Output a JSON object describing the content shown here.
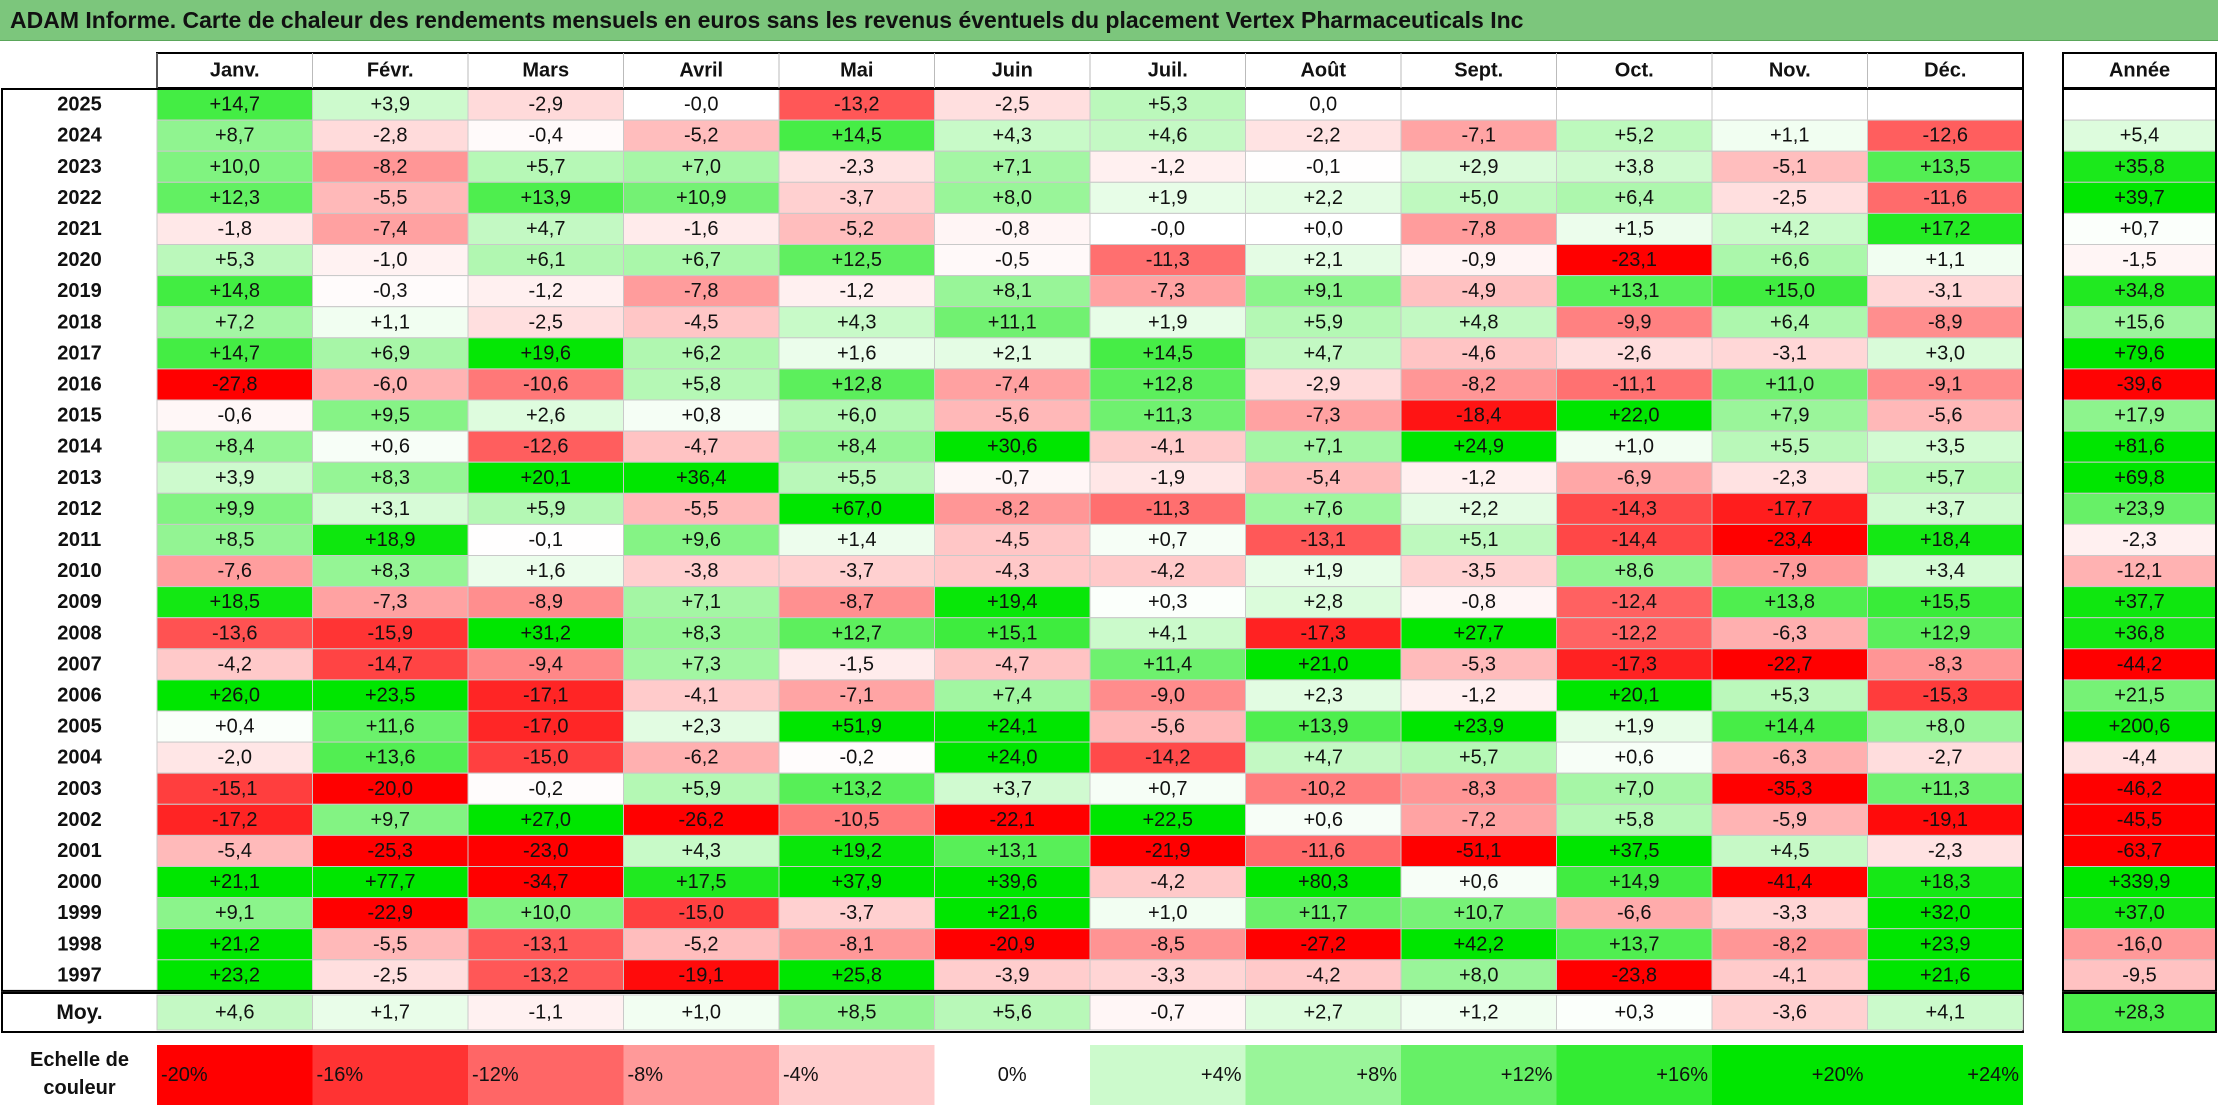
{
  "title": "ADAM Informe. Carte de chaleur des rendements mensuels en euros sans les revenus éventuels du placement Vertex Pharmaceuticals Inc",
  "chart_data": {
    "type": "heatmap",
    "months": [
      "Janv.",
      "Févr.",
      "Mars",
      "Avril",
      "Mai",
      "Juin",
      "Juil.",
      "Août",
      "Sept.",
      "Oct.",
      "Nov.",
      "Déc."
    ],
    "year_header": "Année",
    "rows": [
      {
        "year": "2025",
        "values": [
          "+14,7",
          "+3,9",
          "-2,9",
          "-0,0",
          "-13,2",
          "-2,5",
          "+5,3",
          "0,0",
          "",
          "",
          "",
          ""
        ],
        "annual": ""
      },
      {
        "year": "2024",
        "values": [
          "+8,7",
          "-2,8",
          "-0,4",
          "-5,2",
          "+14,5",
          "+4,3",
          "+4,6",
          "-2,2",
          "-7,1",
          "+5,2",
          "+1,1",
          "-12,6"
        ],
        "annual": "+5,4"
      },
      {
        "year": "2023",
        "values": [
          "+10,0",
          "-8,2",
          "+5,7",
          "+7,0",
          "-2,3",
          "+7,1",
          "-1,2",
          "-0,1",
          "+2,9",
          "+3,8",
          "-5,1",
          "+13,5"
        ],
        "annual": "+35,8"
      },
      {
        "year": "2022",
        "values": [
          "+12,3",
          "-5,5",
          "+13,9",
          "+10,9",
          "-3,7",
          "+8,0",
          "+1,9",
          "+2,2",
          "+5,0",
          "+6,4",
          "-2,5",
          "-11,6"
        ],
        "annual": "+39,7"
      },
      {
        "year": "2021",
        "values": [
          "-1,8",
          "-7,4",
          "+4,7",
          "-1,6",
          "-5,2",
          "-0,8",
          "-0,0",
          "+0,0",
          "-7,8",
          "+1,5",
          "+4,2",
          "+17,2"
        ],
        "annual": "+0,7"
      },
      {
        "year": "2020",
        "values": [
          "+5,3",
          "-1,0",
          "+6,1",
          "+6,7",
          "+12,5",
          "-0,5",
          "-11,3",
          "+2,1",
          "-0,9",
          "-23,1",
          "+6,6",
          "+1,1"
        ],
        "annual": "-1,5"
      },
      {
        "year": "2019",
        "values": [
          "+14,8",
          "-0,3",
          "-1,2",
          "-7,8",
          "-1,2",
          "+8,1",
          "-7,3",
          "+9,1",
          "-4,9",
          "+13,1",
          "+15,0",
          "-3,1"
        ],
        "annual": "+34,8"
      },
      {
        "year": "2018",
        "values": [
          "+7,2",
          "+1,1",
          "-2,5",
          "-4,5",
          "+4,3",
          "+11,1",
          "+1,9",
          "+5,9",
          "+4,8",
          "-9,9",
          "+6,4",
          "-8,9"
        ],
        "annual": "+15,6"
      },
      {
        "year": "2017",
        "values": [
          "+14,7",
          "+6,9",
          "+19,6",
          "+6,2",
          "+1,6",
          "+2,1",
          "+14,5",
          "+4,7",
          "-4,6",
          "-2,6",
          "-3,1",
          "+3,0"
        ],
        "annual": "+79,6"
      },
      {
        "year": "2016",
        "values": [
          "-27,8",
          "-6,0",
          "-10,6",
          "+5,8",
          "+12,8",
          "-7,4",
          "+12,8",
          "-2,9",
          "-8,2",
          "-11,1",
          "+11,0",
          "-9,1"
        ],
        "annual": "-39,6"
      },
      {
        "year": "2015",
        "values": [
          "-0,6",
          "+9,5",
          "+2,6",
          "+0,8",
          "+6,0",
          "-5,6",
          "+11,3",
          "-7,3",
          "-18,4",
          "+22,0",
          "+7,9",
          "-5,6"
        ],
        "annual": "+17,9"
      },
      {
        "year": "2014",
        "values": [
          "+8,4",
          "+0,6",
          "-12,6",
          "-4,7",
          "+8,4",
          "+30,6",
          "-4,1",
          "+7,1",
          "+24,9",
          "+1,0",
          "+5,5",
          "+3,5"
        ],
        "annual": "+81,6"
      },
      {
        "year": "2013",
        "values": [
          "+3,9",
          "+8,3",
          "+20,1",
          "+36,4",
          "+5,5",
          "-0,7",
          "-1,9",
          "-5,4",
          "-1,2",
          "-6,9",
          "-2,3",
          "+5,7"
        ],
        "annual": "+69,8"
      },
      {
        "year": "2012",
        "values": [
          "+9,9",
          "+3,1",
          "+5,9",
          "-5,5",
          "+67,0",
          "-8,2",
          "-11,3",
          "+7,6",
          "+2,2",
          "-14,3",
          "-17,7",
          "+3,7"
        ],
        "annual": "+23,9"
      },
      {
        "year": "2011",
        "values": [
          "+8,5",
          "+18,9",
          "-0,1",
          "+9,6",
          "+1,4",
          "-4,5",
          "+0,7",
          "-13,1",
          "+5,1",
          "-14,4",
          "-23,4",
          "+18,4"
        ],
        "annual": "-2,3"
      },
      {
        "year": "2010",
        "values": [
          "-7,6",
          "+8,3",
          "+1,6",
          "-3,8",
          "-3,7",
          "-4,3",
          "-4,2",
          "+1,9",
          "-3,5",
          "+8,6",
          "-7,9",
          "+3,4"
        ],
        "annual": "-12,1"
      },
      {
        "year": "2009",
        "values": [
          "+18,5",
          "-7,3",
          "-8,9",
          "+7,1",
          "-8,7",
          "+19,4",
          "+0,3",
          "+2,8",
          "-0,8",
          "-12,4",
          "+13,8",
          "+15,5"
        ],
        "annual": "+37,7"
      },
      {
        "year": "2008",
        "values": [
          "-13,6",
          "-15,9",
          "+31,2",
          "+8,3",
          "+12,7",
          "+15,1",
          "+4,1",
          "-17,3",
          "+27,7",
          "-12,2",
          "-6,3",
          "+12,9"
        ],
        "annual": "+36,8"
      },
      {
        "year": "2007",
        "values": [
          "-4,2",
          "-14,7",
          "-9,4",
          "+7,3",
          "-1,5",
          "-4,7",
          "+11,4",
          "+21,0",
          "-5,3",
          "-17,3",
          "-22,7",
          "-8,3"
        ],
        "annual": "-44,2"
      },
      {
        "year": "2006",
        "values": [
          "+26,0",
          "+23,5",
          "-17,1",
          "-4,1",
          "-7,1",
          "+7,4",
          "-9,0",
          "+2,3",
          "-1,2",
          "+20,1",
          "+5,3",
          "-15,3"
        ],
        "annual": "+21,5"
      },
      {
        "year": "2005",
        "values": [
          "+0,4",
          "+11,6",
          "-17,0",
          "+2,3",
          "+51,9",
          "+24,1",
          "-5,6",
          "+13,9",
          "+23,9",
          "+1,9",
          "+14,4",
          "+8,0"
        ],
        "annual": "+200,6"
      },
      {
        "year": "2004",
        "values": [
          "-2,0",
          "+13,6",
          "-15,0",
          "-6,2",
          "-0,2",
          "+24,0",
          "-14,2",
          "+4,7",
          "+5,7",
          "+0,6",
          "-6,3",
          "-2,7"
        ],
        "annual": "-4,4"
      },
      {
        "year": "2003",
        "values": [
          "-15,1",
          "-20,0",
          "-0,2",
          "+5,9",
          "+13,2",
          "+3,7",
          "+0,7",
          "-10,2",
          "-8,3",
          "+7,0",
          "-35,3",
          "+11,3"
        ],
        "annual": "-46,2"
      },
      {
        "year": "2002",
        "values": [
          "-17,2",
          "+9,7",
          "+27,0",
          "-26,2",
          "-10,5",
          "-22,1",
          "+22,5",
          "+0,6",
          "-7,2",
          "+5,8",
          "-5,9",
          "-19,1"
        ],
        "annual": "-45,5"
      },
      {
        "year": "2001",
        "values": [
          "-5,4",
          "-25,3",
          "-23,0",
          "+4,3",
          "+19,2",
          "+13,1",
          "-21,9",
          "-11,6",
          "-51,1",
          "+37,5",
          "+4,5",
          "-2,3"
        ],
        "annual": "-63,7"
      },
      {
        "year": "2000",
        "values": [
          "+21,1",
          "+77,7",
          "-34,7",
          "+17,5",
          "+37,9",
          "+39,6",
          "-4,2",
          "+80,3",
          "+0,6",
          "+14,9",
          "-41,4",
          "+18,3"
        ],
        "annual": "+339,9"
      },
      {
        "year": "1999",
        "values": [
          "+9,1",
          "-22,9",
          "+10,0",
          "-15,0",
          "-3,7",
          "+21,6",
          "+1,0",
          "+11,7",
          "+10,7",
          "-6,6",
          "-3,3",
          "+32,0"
        ],
        "annual": "+37,0"
      },
      {
        "year": "1998",
        "values": [
          "+21,2",
          "-5,5",
          "-13,1",
          "-5,2",
          "-8,1",
          "-20,9",
          "-8,5",
          "-27,2",
          "+42,2",
          "+13,7",
          "-8,2",
          "+23,9"
        ],
        "annual": "-16,0"
      },
      {
        "year": "1997",
        "values": [
          "+23,2",
          "-2,5",
          "-13,2",
          "-19,1",
          "+25,8",
          "-3,9",
          "-3,3",
          "-4,2",
          "+8,0",
          "-23,8",
          "-4,1",
          "+21,6"
        ],
        "annual": "-9,5"
      }
    ],
    "average": {
      "label": "Moy.",
      "values": [
        "+4,6",
        "+1,7",
        "-1,1",
        "+1,0",
        "+8,5",
        "+5,6",
        "-0,7",
        "+2,7",
        "+1,2",
        "+0,3",
        "-3,6",
        "+4,1"
      ],
      "annual": "+28,3"
    },
    "scale": {
      "label_line1": "Echelle de",
      "label_line2": "couleur",
      "steps": [
        "-20%",
        "-16%",
        "-12%",
        "-8%",
        "-4%",
        "0%",
        "+4%",
        "+8%",
        "+12%",
        "+16%",
        "+20%",
        "+24%"
      ],
      "step_values": [
        -20,
        -16,
        -12,
        -8,
        -4,
        0,
        4,
        8,
        12,
        16,
        20,
        24
      ]
    },
    "colors": {
      "title_bg": "#7cc67c",
      "neg_max": "#ff0000",
      "pos_max": "#00e600",
      "neutral": "#ffffff"
    }
  }
}
